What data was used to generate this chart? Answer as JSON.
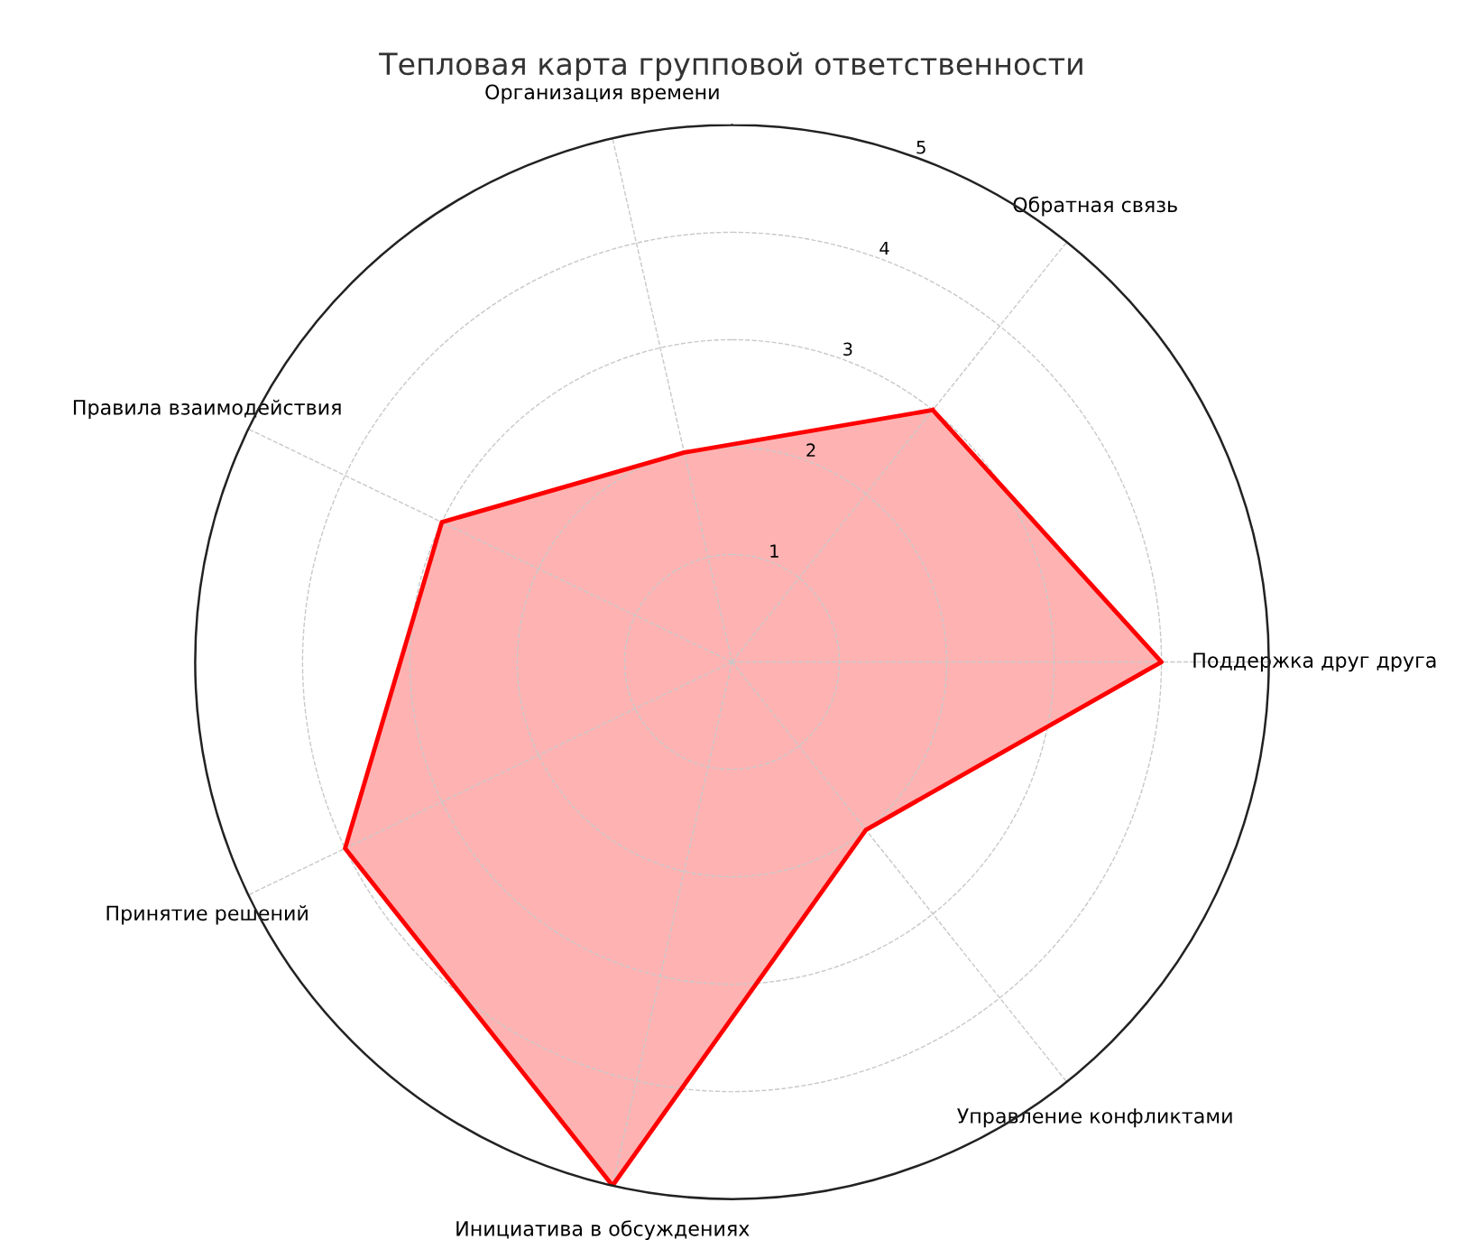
{
  "chart_data": {
    "type": "radar",
    "title": "Тепловая карта групповой ответственности",
    "categories": [
      "Обратная связь",
      "Поддержка друг друга",
      "Управление конфликтами",
      "Инициатива в обсуждениях",
      "Принятие решений",
      "Правила взаимодействия",
      "Организация времени"
    ],
    "series": [
      {
        "color": "#ff0000",
        "values": [
          3,
          4,
          2,
          5,
          4,
          3,
          2
        ]
      }
    ],
    "ylim": [
      0,
      5
    ],
    "yticks": [
      1,
      2,
      3,
      4,
      5
    ],
    "grid": true,
    "line_style": "solid"
  }
}
